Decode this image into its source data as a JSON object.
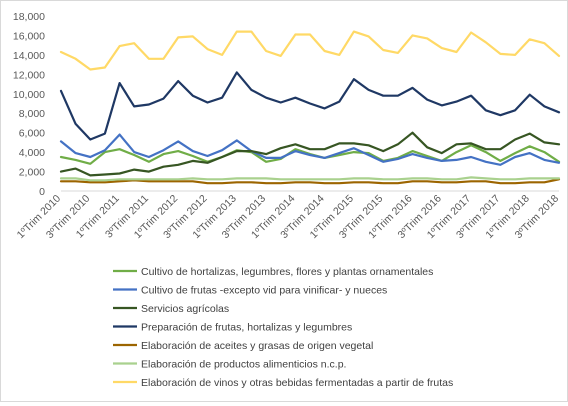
{
  "chart_data": {
    "type": "line",
    "title": "",
    "xlabel": "",
    "ylabel": "",
    "ylim": [
      0,
      18000
    ],
    "yticks": [
      "0",
      "2,000",
      "4,000",
      "6,000",
      "8,000",
      "10,000",
      "12,000",
      "14,000",
      "16,000",
      "18,000"
    ],
    "grid": false,
    "legend_position": "bottom",
    "x": [
      "1ºTrim 2010",
      "2ºTrim 2010",
      "3ºTrim 2010",
      "4ºTrim 2010",
      "1ºTrim 2011",
      "2ºTrim 2011",
      "3ºTrim 2011",
      "4ºTrim 2011",
      "1ºTrim 2012",
      "2ºTrim 2012",
      "3ºTrim 2012",
      "4ºTrim 2012",
      "1ºTrim 2013",
      "2ºTrim 2013",
      "3ºTrim 2013",
      "4ºTrim 2013",
      "1ºTrim 2014",
      "2ºTrim 2014",
      "3ºTrim 2014",
      "4ºTrim 2014",
      "1ºTrim 2015",
      "2ºTrim 2015",
      "3ºTrim 2015",
      "4ºTrim 2015",
      "1ºTrim 2016",
      "2ºTrim 2016",
      "3ºTrim 2016",
      "4ºTrim 2016",
      "1ºTrim 2017",
      "2ºTrim 2017",
      "3ºTrim 2017",
      "4ºTrim 2017",
      "1ºTrim 2018",
      "2ºTrim 2018",
      "3ºTrim 2018"
    ],
    "tick_labels": [
      "1ºTrim 2010",
      "3ºTrim 2010",
      "1ºTrim 2011",
      "3ºTrim 2011",
      "1ºTrim 2012",
      "3ºTrim 2012",
      "1ºTrim 2013",
      "3ºTrim 2013",
      "1ºTrim 2014",
      "3ºTrim 2014",
      "1ºTrim 2015",
      "3ºTrim 2015",
      "1ºTrim 2016",
      "3ºTrim 2016",
      "1ºTrim 2017",
      "3ºTrim 2017",
      "1ºTrim 2018",
      "3ºTrim 2018"
    ],
    "series": [
      {
        "name": "Cultivo de hortalizas, legumbres, flores y plantas ornamentales",
        "color": "#70ad47",
        "values": [
          3500,
          3200,
          2800,
          4000,
          4300,
          3700,
          3000,
          3800,
          4100,
          3600,
          3000,
          3500,
          4200,
          4000,
          3000,
          3300,
          4300,
          3800,
          3400,
          3700,
          4000,
          3900,
          3100,
          3400,
          4100,
          3600,
          3100,
          4000,
          4700,
          4000,
          3100,
          3900,
          4600,
          4000,
          3000
        ]
      },
      {
        "name": "Cultivo de frutas  -excepto vid para vinificar- y nueces",
        "color": "#4472c4",
        "values": [
          5100,
          3900,
          3500,
          4200,
          5800,
          4000,
          3500,
          4200,
          5100,
          4100,
          3600,
          4200,
          5200,
          4100,
          3400,
          3400,
          4100,
          3700,
          3400,
          3900,
          4400,
          3700,
          3000,
          3300,
          3800,
          3400,
          3100,
          3200,
          3500,
          3000,
          2700,
          3500,
          3900,
          3200,
          2900
        ]
      },
      {
        "name": "Servicios agrícolas",
        "color": "#375623",
        "values": [
          2000,
          2300,
          1600,
          1700,
          1800,
          2200,
          2000,
          2500,
          2700,
          3100,
          2900,
          3500,
          4100,
          4100,
          3800,
          4400,
          4800,
          4300,
          4300,
          4900,
          4900,
          4700,
          4100,
          4800,
          6000,
          4500,
          3900,
          4800,
          4900,
          4300,
          4300,
          5300,
          5900,
          5000,
          4800
        ]
      },
      {
        "name": "Preparación de frutas, hortalizas y legumbres",
        "color": "#1f3864",
        "values": [
          10300,
          6900,
          5300,
          5900,
          11100,
          8700,
          8900,
          9500,
          11300,
          9800,
          9100,
          9600,
          12200,
          10400,
          9600,
          9100,
          9600,
          9000,
          8500,
          9200,
          11500,
          10400,
          9800,
          9800,
          10600,
          9400,
          8800,
          9200,
          9800,
          8300,
          7800,
          8300,
          9900,
          8700,
          8100
        ]
      },
      {
        "name": "Elaboración de aceites y grasas de origen vegetal",
        "color": "#9c6500",
        "values": [
          1000,
          1000,
          900,
          900,
          1000,
          1100,
          1000,
          1000,
          1000,
          1000,
          800,
          800,
          900,
          900,
          800,
          800,
          900,
          900,
          800,
          800,
          900,
          900,
          800,
          800,
          1000,
          1000,
          900,
          900,
          1000,
          1000,
          800,
          800,
          900,
          900,
          1200
        ]
      },
      {
        "name": "Elaboración de productos alimenticios n.c.p.",
        "color": "#a9d18e",
        "values": [
          1300,
          1300,
          1100,
          1100,
          1200,
          1200,
          1200,
          1200,
          1200,
          1300,
          1200,
          1200,
          1300,
          1300,
          1300,
          1200,
          1200,
          1200,
          1200,
          1200,
          1300,
          1300,
          1200,
          1200,
          1300,
          1300,
          1200,
          1200,
          1400,
          1300,
          1200,
          1200,
          1300,
          1300,
          1300
        ]
      },
      {
        "name": "Elaboración de vinos y otras bebidas fermentadas a partir de frutas",
        "color": "#ffd966",
        "values": [
          14300,
          13600,
          12500,
          12700,
          14900,
          15200,
          13600,
          13600,
          15800,
          15900,
          14600,
          14000,
          16400,
          16400,
          14400,
          13900,
          16100,
          16100,
          14400,
          14000,
          16400,
          15900,
          14500,
          14200,
          16000,
          15700,
          14700,
          14300,
          16300,
          15300,
          14100,
          14000,
          15600,
          15200,
          13900
        ]
      }
    ]
  }
}
